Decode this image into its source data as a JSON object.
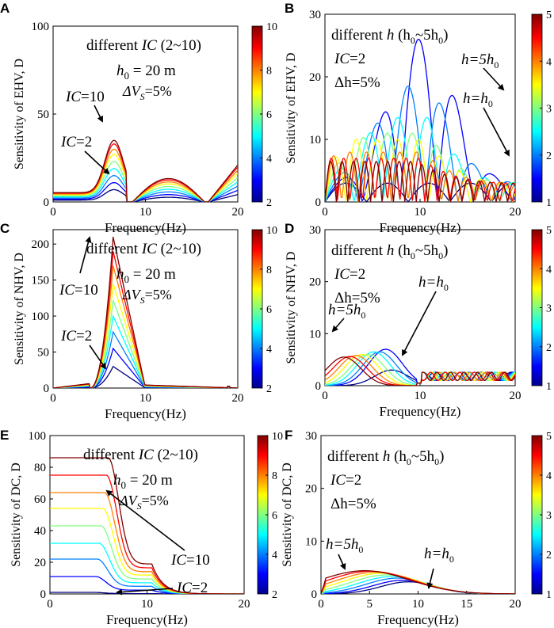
{
  "figure": {
    "panel_labels": [
      "A",
      "B",
      "C",
      "D",
      "E",
      "F"
    ]
  },
  "chart_data": [
    {
      "id": "A",
      "type": "line",
      "panel_label": "A",
      "title": "",
      "xlabel": "Frequency(Hz)",
      "ylabel": "Sensitivity of EHV, D",
      "xlim": [
        0,
        20
      ],
      "ylim": [
        0,
        100
      ],
      "xticks": [
        "0",
        "10",
        "20"
      ],
      "yticks": [
        "0",
        "50",
        "100"
      ],
      "colorbar": {
        "min": 2,
        "max": 10,
        "ticks": [
          "2",
          "4",
          "6",
          "8",
          "10"
        ]
      },
      "series_param": [
        2,
        3,
        4,
        5,
        6,
        7,
        8,
        9,
        10
      ],
      "peak_values": [
        7,
        11,
        15,
        19,
        23,
        27,
        30,
        33,
        35
      ],
      "annotations": {
        "line1": "different",
        "line1b": "IC",
        "line1c": " (2~10)",
        "h0": "h",
        "h0sub": "0",
        "h0val": " = 20 m",
        "dv": "ΔV",
        "dvsub": "S",
        "dvval": "=5%",
        "top_label": "IC",
        "top_val": "=10",
        "bot_label": "IC",
        "bot_val": "=2"
      }
    },
    {
      "id": "B",
      "type": "line",
      "panel_label": "B",
      "xlabel": "Frequency(Hz)",
      "ylabel": "Sensitivity of EHV, D",
      "xlim": [
        0,
        20
      ],
      "ylim": [
        0,
        30
      ],
      "xticks": [
        "0",
        "10",
        "20"
      ],
      "yticks": [
        "0",
        "10",
        "20",
        "30"
      ],
      "colorbar": {
        "min": 1,
        "max": 5,
        "ticks": [
          "1",
          "2",
          "3",
          "4",
          "5"
        ]
      },
      "series_param": [
        1,
        1.5,
        2,
        2.5,
        3,
        3.5,
        4,
        4.5,
        5
      ],
      "peak_values": [
        3,
        26,
        18.5,
        13.5,
        11,
        10,
        8,
        7,
        6.5
      ],
      "annotations": {
        "line1": "different ",
        "line1h": "h",
        "line1c": " (h",
        "s0": "0",
        "mid": "~5h",
        "s1": "0",
        "end": ")",
        "ic": "IC",
        "icval": "=2",
        "dh": "Δh=5%",
        "top_label": "h=5h",
        "top_sub": "0",
        "bot_label": "h=h",
        "bot_sub": "0"
      }
    },
    {
      "id": "C",
      "type": "line",
      "panel_label": "C",
      "xlabel": "Frequency(Hz)",
      "ylabel": "Sensitivity of NHV, D",
      "xlim": [
        0,
        20
      ],
      "ylim": [
        0,
        220
      ],
      "xticks": [
        "0",
        "10",
        "20"
      ],
      "yticks": [
        "0",
        "50",
        "100",
        "150",
        "200"
      ],
      "colorbar": {
        "min": 2,
        "max": 10,
        "ticks": [
          "2",
          "4",
          "6",
          "8",
          "10"
        ]
      },
      "series_param": [
        2,
        3,
        4,
        5,
        6,
        7,
        8,
        9,
        10
      ],
      "peak_values": [
        30,
        55,
        78,
        100,
        122,
        145,
        170,
        190,
        210
      ],
      "annotations": {
        "line1": "different",
        "line1b": "IC",
        "line1c": " (2~10)",
        "h0": "h",
        "h0sub": "0",
        "h0val": " = 20 m",
        "dv": "ΔV",
        "dvsub": "S",
        "dvval": "=5%",
        "top_label": "IC",
        "top_val": "=10",
        "bot_label": "IC",
        "bot_val": "=2"
      }
    },
    {
      "id": "D",
      "type": "line",
      "panel_label": "D",
      "xlabel": "Frequency(Hz)",
      "ylabel": "Sensitivity of NHV, D",
      "xlim": [
        0,
        20
      ],
      "ylim": [
        0,
        30
      ],
      "xticks": [
        "0",
        "10",
        "20"
      ],
      "yticks": [
        "0",
        "10",
        "20",
        "30"
      ],
      "colorbar": {
        "min": 1,
        "max": 5,
        "ticks": [
          "1",
          "2",
          "3",
          "4",
          "5"
        ]
      },
      "series_param": [
        1,
        1.5,
        2,
        2.5,
        3,
        3.5,
        4,
        4.5,
        5
      ],
      "peak_values": [
        3,
        7,
        6.5,
        6.5,
        6,
        6,
        5.8,
        5.6,
        5.5
      ],
      "annotations": {
        "line1": "different ",
        "line1h": "h",
        "line1c": " (h",
        "s0": "0",
        "mid": "~5h",
        "s1": "0",
        "end": ")",
        "ic": "IC",
        "icval": "=2",
        "dh": "Δh=5%",
        "top_label": "h=5h",
        "top_sub": "0",
        "bot_label": "h=h",
        "bot_sub": "0"
      }
    },
    {
      "id": "E",
      "type": "line",
      "panel_label": "E",
      "xlabel": "Frequency(Hz)",
      "ylabel": "Sensitivity of DC, D",
      "xlim": [
        0,
        20
      ],
      "ylim": [
        0,
        100
      ],
      "xticks": [
        "0",
        "10",
        "20"
      ],
      "yticks": [
        "0",
        "20",
        "40",
        "60",
        "80",
        "100"
      ],
      "colorbar": {
        "min": 2,
        "max": 10,
        "ticks": [
          "2",
          "4",
          "6",
          "8",
          "10"
        ]
      },
      "series_param": [
        2,
        3,
        4,
        5,
        6,
        7,
        8,
        9,
        10
      ],
      "plateau_values": [
        1,
        11,
        22,
        32,
        43,
        54,
        64,
        75,
        86
      ],
      "annotations": {
        "line1": "different",
        "line1b": "IC",
        "line1c": " (2~10)",
        "h0": "h",
        "h0sub": "0",
        "h0val": " = 20 m",
        "dv": "ΔV",
        "dvsub": "S",
        "dvval": "=5%",
        "top_label": "IC",
        "top_val": "=10",
        "bot_label": "IC",
        "bot_val": "=2"
      }
    },
    {
      "id": "F",
      "type": "line",
      "panel_label": "F",
      "xlabel": "Frequency(Hz)",
      "ylabel": "Sensitivity of DC, D",
      "xlim": [
        0,
        20
      ],
      "ylim": [
        0,
        30
      ],
      "xticks": [
        "0",
        "5",
        "10",
        "15",
        "20"
      ],
      "yticks": [
        "0",
        "10",
        "20",
        "30"
      ],
      "colorbar": {
        "min": 1,
        "max": 5,
        "ticks": [
          "1",
          "2",
          "3",
          "4",
          "5"
        ]
      },
      "series_param": [
        1,
        1.5,
        2,
        2.5,
        3,
        3.5,
        4,
        4.5,
        5
      ],
      "peak_values": [
        2.3,
        2.6,
        3,
        3.3,
        3.6,
        3.9,
        4.1,
        4.3,
        4.4
      ],
      "annotations": {
        "line1": "different ",
        "line1h": "h",
        "line1c": " (h",
        "s0": "0",
        "mid": "~5h",
        "s1": "0",
        "end": ")",
        "ic": "IC",
        "icval": "=2",
        "dh": "Δh=5%",
        "top_label": "h=5h",
        "top_sub": "0",
        "bot_label": "h=h",
        "bot_sub": "0"
      }
    }
  ]
}
